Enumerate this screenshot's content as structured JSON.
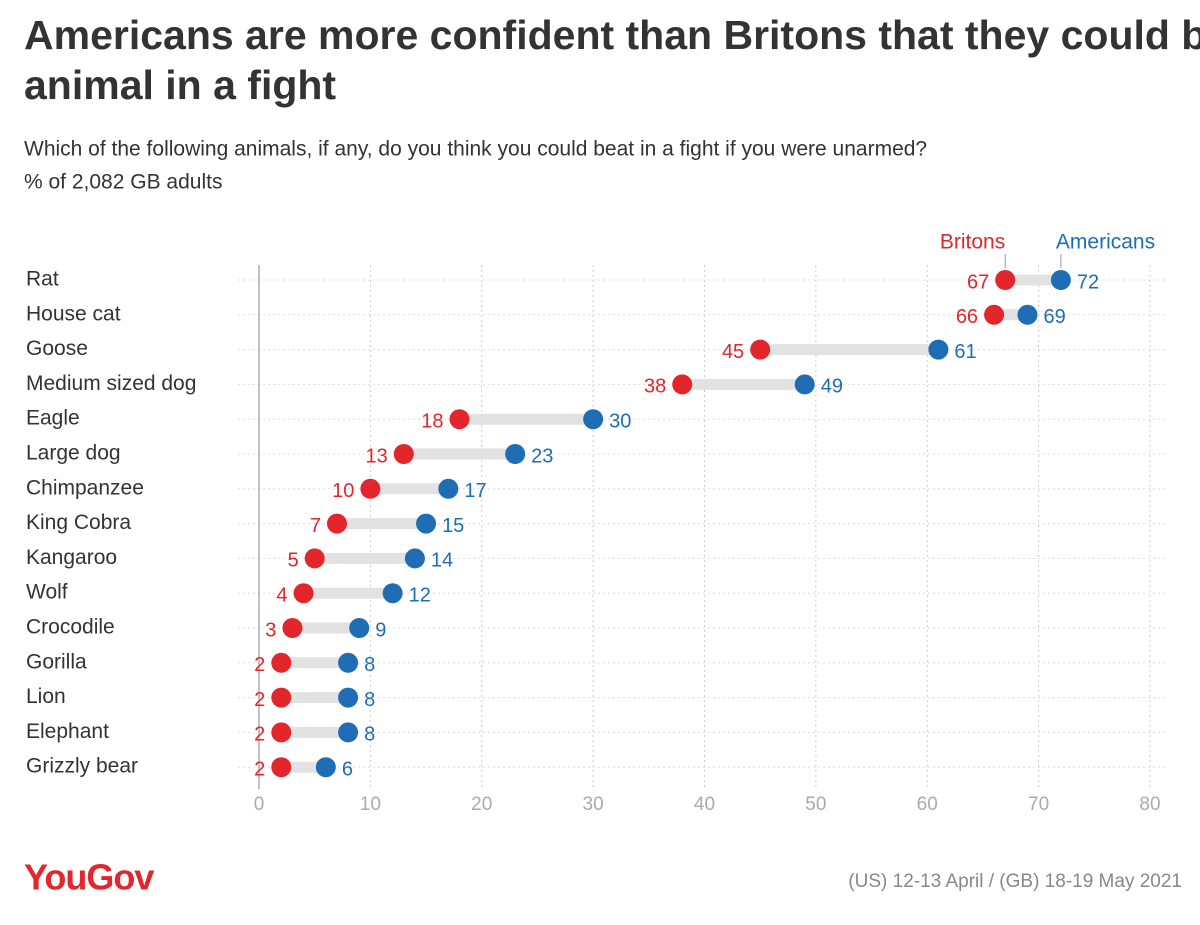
{
  "chart_data": {
    "type": "dumbbell",
    "title": "Americans are more confident than Britons that they could beat any animal in a fight",
    "subtitle": "Which of the following animals, if any, do you think you could beat in a fight if you were unarmed?",
    "note": "% of 2,082 GB adults",
    "categories": [
      "Rat",
      "House cat",
      "Goose",
      "Medium sized dog",
      "Eagle",
      "Large dog",
      "Chimpanzee",
      "King Cobra",
      "Kangaroo",
      "Wolf",
      "Crocodile",
      "Gorilla",
      "Lion",
      "Elephant",
      "Grizzly bear"
    ],
    "series": [
      {
        "name": "Britons",
        "color": "#e3262b",
        "values": [
          67,
          66,
          45,
          38,
          18,
          13,
          10,
          7,
          5,
          4,
          3,
          2,
          2,
          2,
          2
        ]
      },
      {
        "name": "Americans",
        "color": "#1f6db5",
        "values": [
          72,
          69,
          61,
          49,
          30,
          23,
          17,
          15,
          14,
          12,
          9,
          8,
          8,
          8,
          6
        ]
      }
    ],
    "xlim": [
      0,
      80
    ],
    "xticks": [
      0,
      10,
      20,
      30,
      40,
      50,
      60,
      70,
      80
    ],
    "grid": true,
    "logo": "YouGov",
    "source": "(US) 12-13 April / (GB) 18-19 May 2021"
  }
}
